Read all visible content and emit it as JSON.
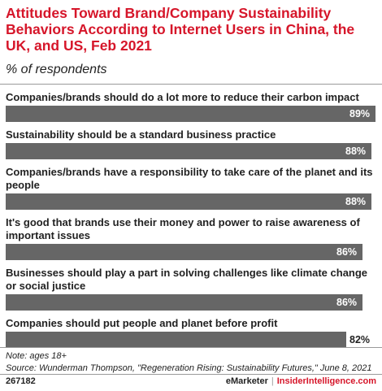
{
  "chart_data": {
    "type": "bar",
    "orientation": "horizontal",
    "title": "Attitudes Toward Brand/Company Sustainability Behaviors According to Internet Users in China, the UK, and US, Feb 2021",
    "subtitle": "% of respondents",
    "categories": [
      "Companies/brands should do a lot more to reduce their carbon impact",
      "Sustainability should be a standard business practice",
      "Companies/brands have a responsibility to take care of the planet and its people",
      "It's good that brands use their money and power to raise awareness of important issues",
      "Businesses should play a part in solving challenges like climate change or social justice",
      "Companies should put people and planet before profit"
    ],
    "values": [
      89,
      88,
      88,
      86,
      86,
      82
    ],
    "value_labels": [
      "89%",
      "88%",
      "88%",
      "86%",
      "86%",
      "82%"
    ],
    "xlim": [
      0,
      100
    ],
    "grid": false,
    "bar_color": "#666666"
  },
  "note": "Note: ages 18+",
  "source": "Source: Wunderman Thompson, \"Regeneration Rising: Sustainability Futures,\" June 8, 2021",
  "footer": {
    "chart_id": "267182",
    "brand_left": "eMarketer",
    "separator": "|",
    "brand_right": "InsiderIntelligence.com"
  },
  "colors": {
    "title_red": "#d6162a",
    "bar_gray": "#666666"
  }
}
